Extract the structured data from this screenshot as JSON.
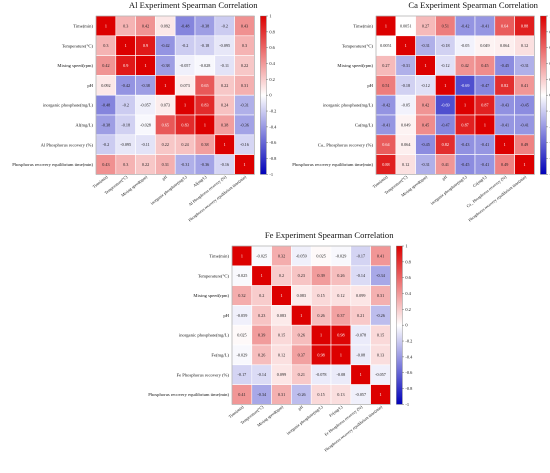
{
  "chart_data": [
    {
      "type": "heatmap",
      "title": "Al Experiment Spearman Correlation",
      "rows": [
        "Time(min)",
        "Temperature(°C)",
        "Mixing speed(rpm)",
        "pH",
        "inorganic phosphate(mg/L)",
        "Al(mg/L)",
        "Al Phosphorus recovery (%)",
        "Phosphorus recovery equilibrium time(min)"
      ],
      "cols": [
        "Time(min)",
        "Temperature(°C)",
        "Mixing speed(rpm)",
        "pH",
        "inorganic phosphate(mg/L)",
        "Al(mg/L)",
        "Al Phosphorus recovery (%)",
        "Phosphorus recovery equilibrium time(min)"
      ],
      "values": [
        [
          1,
          0.3,
          0.42,
          0.092,
          -0.48,
          -0.38,
          -0.2,
          0.43
        ],
        [
          0.3,
          1,
          0.9,
          -0.42,
          -0.2,
          -0.18,
          -0.095,
          0.3
        ],
        [
          0.42,
          0.9,
          1,
          -0.38,
          -0.057,
          -0.028,
          -0.11,
          0.22
        ],
        [
          0.092,
          -0.42,
          -0.38,
          1,
          0.073,
          0.65,
          0.22,
          0.31
        ],
        [
          -0.48,
          -0.2,
          -0.057,
          0.073,
          1,
          0.83,
          0.24,
          -0.31
        ],
        [
          -0.38,
          -0.18,
          -0.028,
          0.65,
          0.83,
          1,
          0.38,
          -0.36
        ],
        [
          -0.2,
          -0.095,
          -0.11,
          0.22,
          0.24,
          0.38,
          1,
          -0.16
        ],
        [
          0.43,
          0.3,
          0.22,
          0.31,
          -0.31,
          -0.36,
          -0.16,
          1
        ]
      ],
      "colorbar": {
        "min": -1,
        "max": 1,
        "ticks": [
          "1",
          "0.8",
          "0.6",
          "0.4",
          "0.2",
          "0",
          "-0.2",
          "-0.4",
          "-0.6",
          "-0.8",
          "-1"
        ]
      }
    },
    {
      "type": "heatmap",
      "title": "Ca Experiment Spearman Correlation",
      "rows": [
        "Time(min)",
        "Temperature(°C)",
        "Mixing speed(rpm)",
        "pH",
        "inorganic phosphate(mg/L)",
        "Ca(mg/L)",
        "Ca_ Phosphorus recovery (%)",
        "Phosphorus recovery equilibrium time(min)"
      ],
      "cols": [
        "Time(min)",
        "Temperature(°C)",
        "Mixing speed(rpm)",
        "pH",
        "inorganic phosphate(mg/L)",
        "Ca(mg/L)",
        "Ca_ Phosphorus recovery (%)",
        "Phosphorus recovery equilibrium time(min)"
      ],
      "values": [
        [
          1,
          0.0051,
          0.27,
          0.51,
          -0.42,
          -0.41,
          0.64,
          0.88
        ],
        [
          0.0051,
          1,
          -0.31,
          -0.18,
          -0.05,
          0.049,
          0.064,
          0.12
        ],
        [
          0.27,
          -0.31,
          1,
          -0.12,
          0.42,
          0.45,
          -0.45,
          -0.31
        ],
        [
          0.51,
          -0.18,
          -0.12,
          1,
          -0.69,
          -0.47,
          0.82,
          0.41
        ],
        [
          -0.42,
          -0.05,
          0.42,
          -0.69,
          1,
          0.87,
          -0.43,
          -0.45
        ],
        [
          -0.41,
          0.049,
          0.45,
          -0.47,
          0.87,
          1,
          -0.41,
          -0.41
        ],
        [
          0.64,
          0.064,
          -0.45,
          0.82,
          -0.43,
          -0.41,
          1,
          0.49
        ],
        [
          0.88,
          0.12,
          -0.31,
          0.41,
          -0.45,
          -0.41,
          0.49,
          1
        ]
      ],
      "colorbar": {
        "min": -1,
        "max": 1,
        "ticks": [
          "1",
          "0.8",
          "0.6",
          "0.4",
          "0.2",
          "0",
          "-0.2",
          "-0.4",
          "-0.6",
          "-0.8",
          "-1"
        ]
      }
    },
    {
      "type": "heatmap",
      "title": "Fe Experiment Spearman Correlation",
      "rows": [
        "Time(min)",
        "Temperature(°C)",
        "Mixing speed(rpm)",
        "pH",
        "inorganic phosphate(mg/L)",
        "Fe(mg/L)",
        "Fe Phosphorus recovery (%)",
        "Phosphorus recovery equilibrium time(min)"
      ],
      "cols": [
        "Time(min)",
        "Temperature(°C)",
        "Mixing speed(rpm)",
        "pH",
        "inorganic phosphate(mg/L)",
        "Fe(mg/L)",
        "Fe Phosphorus recovery (%)",
        "Phosphorus recovery equilibrium time(min)"
      ],
      "values": [
        [
          1,
          -0.025,
          0.32,
          -0.059,
          0.025,
          -0.029,
          -0.17,
          0.41
        ],
        [
          -0.025,
          1,
          0.2,
          0.23,
          0.39,
          0.26,
          -0.14,
          -0.34
        ],
        [
          0.32,
          0.2,
          1,
          0.083,
          0.15,
          0.12,
          0.099,
          0.31
        ],
        [
          -0.059,
          0.23,
          0.083,
          1,
          0.26,
          0.37,
          0.21,
          -0.26
        ],
        [
          0.025,
          0.39,
          0.15,
          0.26,
          1,
          0.98,
          -0.078,
          0.15
        ],
        [
          -0.029,
          0.26,
          0.12,
          0.37,
          0.98,
          1,
          -0.08,
          0.13
        ],
        [
          -0.17,
          -0.14,
          0.099,
          0.21,
          -0.078,
          -0.08,
          1,
          -0.057
        ],
        [
          0.41,
          -0.34,
          0.31,
          -0.26,
          0.15,
          0.13,
          -0.057,
          1
        ]
      ],
      "colorbar": {
        "min": -1,
        "max": 1,
        "ticks": [
          "1",
          "0.8",
          "0.6",
          "0.4",
          "0.2",
          "0",
          "-0.2",
          "-0.4",
          "-0.6",
          "-0.8",
          "-1"
        ]
      }
    }
  ]
}
